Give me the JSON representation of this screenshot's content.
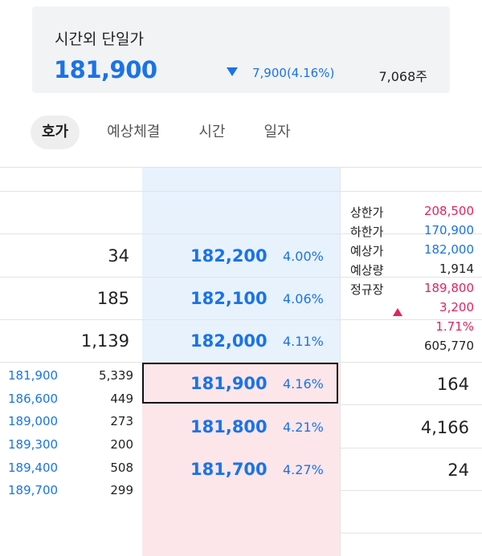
{
  "summary": {
    "title": "시간외 단일가",
    "price": "181,900",
    "arrow_icon": "triangle-down-icon",
    "change": "7,900(4.16%)",
    "volume": "7,068주",
    "down_color": "#1a73e8"
  },
  "tabs": [
    {
      "label": "호가",
      "active": true
    },
    {
      "label": "예상체결",
      "active": false
    },
    {
      "label": "시간",
      "active": false
    },
    {
      "label": "일자",
      "active": false
    }
  ],
  "ask_levels": [
    {
      "qty": "34",
      "price": "182,200",
      "pct": "4.00%"
    },
    {
      "qty": "185",
      "price": "182,100",
      "pct": "4.06%"
    },
    {
      "qty": "1,139",
      "price": "182,000",
      "pct": "4.11%"
    }
  ],
  "bid_levels": [
    {
      "price": "181,900",
      "pct": "4.16%",
      "qty": "164"
    },
    {
      "price": "181,800",
      "pct": "4.21%",
      "qty": "4,166"
    },
    {
      "price": "181,700",
      "pct": "4.27%",
      "qty": "24"
    }
  ],
  "info": {
    "upper_limit_label": "상한가",
    "upper_limit": "208,500",
    "lower_limit_label": "하한가",
    "lower_limit": "170,900",
    "expected_price_label": "예상가",
    "expected_price": "182,000",
    "expected_volume_label": "예상량",
    "expected_volume": "1,914",
    "regular_close_label": "정규장",
    "regular_close": "189,800",
    "regular_change": "3,200",
    "regular_change_pct": "1.71%",
    "regular_volume": "605,770",
    "up_icon": "triangle-up-icon",
    "up_color": "#e0245e"
  },
  "trades": [
    {
      "price": "181,900",
      "volume": "5,339"
    },
    {
      "price": "186,600",
      "volume": "449"
    },
    {
      "price": "189,000",
      "volume": "273"
    },
    {
      "price": "189,300",
      "volume": "200"
    },
    {
      "price": "189,400",
      "volume": "508"
    },
    {
      "price": "189,700",
      "volume": "299"
    }
  ]
}
